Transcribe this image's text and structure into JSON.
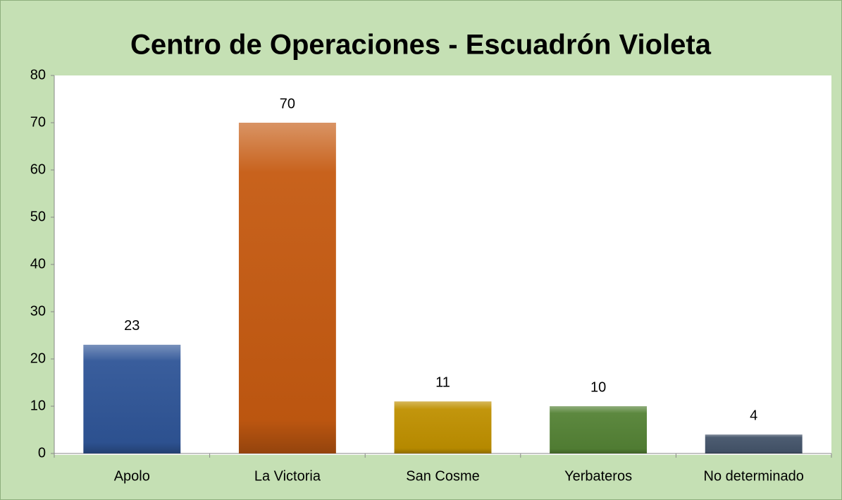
{
  "chart_data": {
    "type": "bar",
    "title": "Centro de Operaciones - Escuadrón Violeta",
    "categories": [
      "Apolo",
      "La Victoria",
      "San Cosme",
      "Yerbateros",
      "No determinado"
    ],
    "values": [
      23,
      70,
      11,
      10,
      4
    ],
    "colors": [
      "#2f5597",
      "#c55a11",
      "#bf9000",
      "#548235",
      "#44546a"
    ],
    "ylim": [
      0,
      80
    ],
    "yticks": [
      0,
      10,
      20,
      30,
      40,
      50,
      60,
      70,
      80
    ],
    "grid": false
  }
}
